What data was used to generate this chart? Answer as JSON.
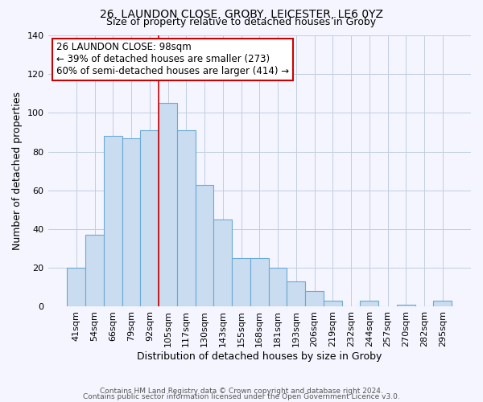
{
  "title": "26, LAUNDON CLOSE, GROBY, LEICESTER, LE6 0YZ",
  "subtitle": "Size of property relative to detached houses in Groby",
  "xlabel": "Distribution of detached houses by size in Groby",
  "ylabel": "Number of detached properties",
  "bar_labels": [
    "41sqm",
    "54sqm",
    "66sqm",
    "79sqm",
    "92sqm",
    "105sqm",
    "117sqm",
    "130sqm",
    "143sqm",
    "155sqm",
    "168sqm",
    "181sqm",
    "193sqm",
    "206sqm",
    "219sqm",
    "232sqm",
    "244sqm",
    "257sqm",
    "270sqm",
    "282sqm",
    "295sqm"
  ],
  "bar_values": [
    20,
    37,
    88,
    87,
    91,
    105,
    91,
    63,
    45,
    25,
    25,
    20,
    13,
    8,
    3,
    0,
    3,
    0,
    1,
    0,
    3
  ],
  "bar_color": "#c9dcf0",
  "bar_edge_color": "#6aaad4",
  "ylim": [
    0,
    140
  ],
  "yticks": [
    0,
    20,
    40,
    60,
    80,
    100,
    120,
    140
  ],
  "vline_x_idx": 4.5,
  "vline_color": "#cc0000",
  "annotation_line0": "26 LAUNDON CLOSE: 98sqm",
  "annotation_line1": "← 39% of detached houses are smaller (273)",
  "annotation_line2": "60% of semi-detached houses are larger (414) →",
  "annotation_box_color": "#cc0000",
  "footer1": "Contains HM Land Registry data © Crown copyright and database right 2024.",
  "footer2": "Contains public sector information licensed under the Open Government Licence v3.0.",
  "background_color": "#f5f5ff",
  "grid_color": "#c0cedf"
}
